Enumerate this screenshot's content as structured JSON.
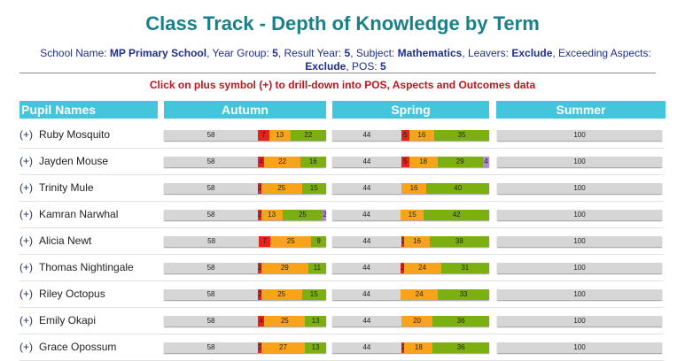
{
  "title": "Class Track - Depth of Knowledge by Term",
  "info": {
    "school_label": "School Name: ",
    "school_value": "MP Primary School",
    "year_label": ", Year Group: ",
    "year_value": "5",
    "result_label": ", Result Year: ",
    "result_value": "5",
    "subject_label": ", Subject: ",
    "subject_value": "Mathematics",
    "leavers_label": ", Leavers: ",
    "leavers_value": "Exclude",
    "exceeding_label": ", Exceeding Aspects: ",
    "exceeding_value": "Exclude",
    "pos_label": ", POS: ",
    "pos_value": "5"
  },
  "hint": "Click on plus symbol (+) to drill-down into POS, Aspects and Outcomes data",
  "headers": {
    "pupil": "Pupil Names",
    "autumn": "Autumn",
    "spring": "Spring",
    "summer": "Summer"
  },
  "plus_label": "(+)",
  "colors": {
    "grey": "#d6d6d6",
    "red": "#e8211d",
    "orange": "#f9a31a",
    "green": "#7cb010",
    "purple": "#b389d8",
    "header": "#43c5dc"
  },
  "pupils": [
    {
      "name": "Ruby Mosquito",
      "autumn": [
        [
          "grey",
          58,
          "58"
        ],
        [
          "red",
          7,
          "7"
        ],
        [
          "orange",
          13,
          "13"
        ],
        [
          "green",
          22,
          "22"
        ]
      ],
      "spring": [
        [
          "grey",
          44,
          "44"
        ],
        [
          "red",
          5,
          "5"
        ],
        [
          "orange",
          16,
          "16"
        ],
        [
          "green",
          35,
          "35"
        ]
      ],
      "summer": [
        [
          "grey",
          100,
          "100"
        ]
      ]
    },
    {
      "name": "Jayden Mouse",
      "autumn": [
        [
          "grey",
          58,
          "58"
        ],
        [
          "red",
          4,
          "4"
        ],
        [
          "orange",
          22,
          "22"
        ],
        [
          "green",
          16,
          "16"
        ]
      ],
      "spring": [
        [
          "grey",
          44,
          "44"
        ],
        [
          "red",
          5,
          "5"
        ],
        [
          "orange",
          18,
          "18"
        ],
        [
          "green",
          29,
          "29"
        ],
        [
          "purple",
          4,
          "4"
        ]
      ],
      "summer": [
        [
          "grey",
          100,
          "100"
        ]
      ]
    },
    {
      "name": "Trinity Mule",
      "autumn": [
        [
          "grey",
          58,
          "58"
        ],
        [
          "red",
          2,
          "2"
        ],
        [
          "orange",
          25,
          "25"
        ],
        [
          "green",
          15,
          "15"
        ]
      ],
      "spring": [
        [
          "grey",
          44,
          "44"
        ],
        [
          "orange",
          16,
          "16"
        ],
        [
          "green",
          40,
          "40"
        ]
      ],
      "summer": [
        [
          "grey",
          100,
          "100"
        ]
      ]
    },
    {
      "name": "Kamran Narwhal",
      "autumn": [
        [
          "grey",
          58,
          "58"
        ],
        [
          "red",
          2,
          "2"
        ],
        [
          "orange",
          13,
          "13"
        ],
        [
          "green",
          25,
          "25"
        ],
        [
          "purple",
          2,
          "2"
        ]
      ],
      "spring": [
        [
          "grey",
          44,
          "44"
        ],
        [
          "orange",
          15,
          "15"
        ],
        [
          "green",
          42,
          "42"
        ]
      ],
      "summer": [
        [
          "grey",
          100,
          "100"
        ]
      ]
    },
    {
      "name": "Alicia Newt",
      "autumn": [
        [
          "grey",
          58,
          "58"
        ],
        [
          "red",
          7,
          "7"
        ],
        [
          "orange",
          25,
          "25"
        ],
        [
          "green",
          9,
          "9"
        ]
      ],
      "spring": [
        [
          "grey",
          44,
          "44"
        ],
        [
          "red",
          2,
          "2"
        ],
        [
          "orange",
          16,
          "16"
        ],
        [
          "green",
          38,
          "38"
        ]
      ],
      "summer": [
        [
          "grey",
          100,
          "100"
        ]
      ]
    },
    {
      "name": "Thomas Nightingale",
      "autumn": [
        [
          "grey",
          58,
          "58"
        ],
        [
          "red",
          2,
          "2"
        ],
        [
          "orange",
          29,
          "29"
        ],
        [
          "green",
          11,
          "11"
        ]
      ],
      "spring": [
        [
          "grey",
          44,
          "44"
        ],
        [
          "red",
          2,
          "2"
        ],
        [
          "orange",
          24,
          "24"
        ],
        [
          "green",
          31,
          "31"
        ]
      ],
      "summer": [
        [
          "grey",
          100,
          "100"
        ]
      ]
    },
    {
      "name": "Riley Octopus",
      "autumn": [
        [
          "grey",
          58,
          "58"
        ],
        [
          "red",
          2,
          "2"
        ],
        [
          "orange",
          25,
          "25"
        ],
        [
          "green",
          15,
          "15"
        ]
      ],
      "spring": [
        [
          "grey",
          44,
          "44"
        ],
        [
          "orange",
          24,
          "24"
        ],
        [
          "green",
          33,
          "33"
        ]
      ],
      "summer": [
        [
          "grey",
          100,
          "100"
        ]
      ]
    },
    {
      "name": "Emily Okapi",
      "autumn": [
        [
          "grey",
          58,
          "58"
        ],
        [
          "red",
          4,
          "4"
        ],
        [
          "orange",
          25,
          "25"
        ],
        [
          "green",
          13,
          "13"
        ]
      ],
      "spring": [
        [
          "grey",
          44,
          "44"
        ],
        [
          "orange",
          20,
          "20"
        ],
        [
          "green",
          36,
          "36"
        ]
      ],
      "summer": [
        [
          "grey",
          100,
          "100"
        ]
      ]
    },
    {
      "name": "Grace Opossum",
      "autumn": [
        [
          "grey",
          58,
          "58"
        ],
        [
          "red",
          2,
          "2"
        ],
        [
          "orange",
          27,
          "27"
        ],
        [
          "green",
          13,
          "13"
        ]
      ],
      "spring": [
        [
          "grey",
          44,
          "44"
        ],
        [
          "red",
          2,
          "2"
        ],
        [
          "orange",
          18,
          "18"
        ],
        [
          "green",
          36,
          "36"
        ]
      ],
      "summer": [
        [
          "grey",
          100,
          "100"
        ]
      ]
    }
  ]
}
